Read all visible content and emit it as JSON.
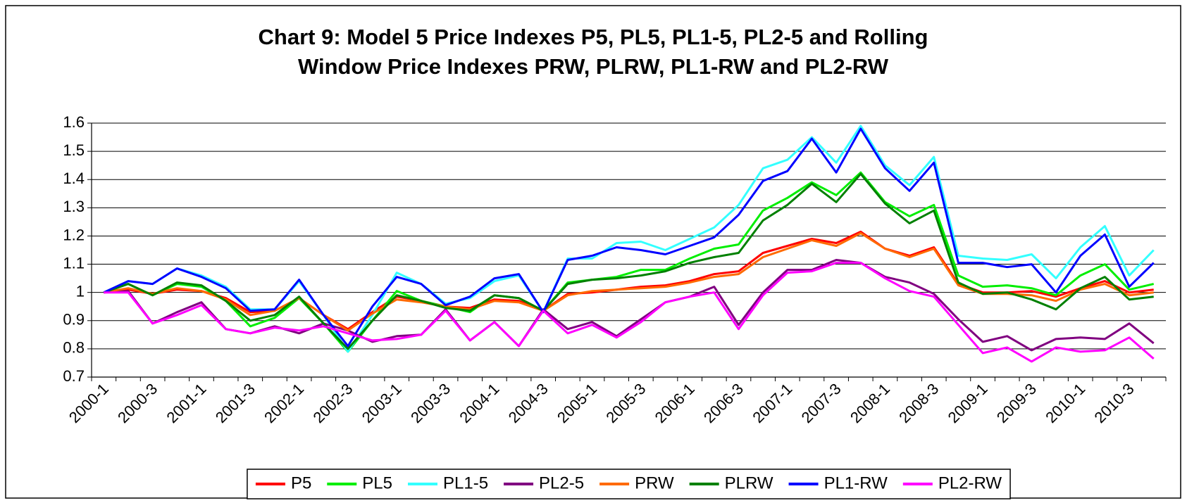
{
  "chart_data": {
    "type": "line",
    "title": [
      "Chart 9: Model 5 Price Indexes P5, PL5, PL1-5, PL2-5 and Rolling",
      "Window Price Indexes PRW, PLRW, PL1-RW and PL2-RW"
    ],
    "categories": [
      "2000-1",
      null,
      "2000-3",
      null,
      "2001-1",
      null,
      "2001-3",
      null,
      "2002-1",
      null,
      "2002-3",
      null,
      "2003-1",
      null,
      "2003-3",
      null,
      "2004-1",
      null,
      "2004-3",
      null,
      "2005-1",
      null,
      "2005-3",
      null,
      "2006-1",
      null,
      "2006-3",
      null,
      "2007-1",
      null,
      "2007-3",
      null,
      "2008-1",
      null,
      "2008-3",
      null,
      "2009-1",
      null,
      "2009-3",
      null,
      "2010-1",
      null,
      "2010-3",
      null
    ],
    "ylim": [
      0.7,
      1.6
    ],
    "yticks": [
      0.7,
      0.8,
      0.9,
      1,
      1.1,
      1.2,
      1.3,
      1.4,
      1.5,
      1.6
    ],
    "grid": true,
    "legend": "bottom",
    "series": [
      {
        "name": "P5",
        "color": "#ff0000",
        "values": [
          1.0,
          1.01,
          0.995,
          1.01,
          1.005,
          0.98,
          0.93,
          0.935,
          0.98,
          0.92,
          0.87,
          0.93,
          0.985,
          0.97,
          0.95,
          0.945,
          0.975,
          0.97,
          0.935,
          0.995,
          1.0,
          1.01,
          1.02,
          1.025,
          1.04,
          1.065,
          1.075,
          1.14,
          1.165,
          1.19,
          1.175,
          1.215,
          1.155,
          1.13,
          1.16,
          1.03,
          1.0,
          1.0,
          1.005,
          0.985,
          1.015,
          1.04,
          1.0,
          1.01
        ]
      },
      {
        "name": "PL5",
        "color": "#00ee00",
        "values": [
          1.0,
          1.03,
          0.99,
          1.03,
          1.02,
          0.97,
          0.88,
          0.91,
          0.98,
          0.89,
          0.79,
          0.9,
          1.005,
          0.97,
          0.95,
          0.93,
          0.99,
          0.98,
          0.935,
          1.035,
          1.045,
          1.055,
          1.08,
          1.08,
          1.12,
          1.155,
          1.17,
          1.29,
          1.335,
          1.39,
          1.345,
          1.425,
          1.32,
          1.27,
          1.31,
          1.06,
          1.02,
          1.025,
          1.015,
          0.99,
          1.06,
          1.1,
          1.01,
          1.03
        ]
      },
      {
        "name": "PL1-5",
        "color": "#33ffff",
        "values": [
          1.0,
          1.04,
          1.03,
          1.085,
          1.06,
          1.02,
          0.94,
          0.94,
          1.04,
          0.92,
          0.79,
          0.92,
          1.07,
          1.03,
          0.96,
          0.98,
          1.04,
          1.06,
          0.93,
          1.12,
          1.12,
          1.175,
          1.18,
          1.15,
          1.19,
          1.23,
          1.31,
          1.44,
          1.47,
          1.55,
          1.46,
          1.59,
          1.45,
          1.38,
          1.48,
          1.13,
          1.12,
          1.115,
          1.135,
          1.05,
          1.16,
          1.235,
          1.06,
          1.15
        ]
      },
      {
        "name": "PL2-5",
        "color": "#800080",
        "values": [
          1.0,
          1.005,
          0.89,
          0.93,
          0.965,
          0.87,
          0.855,
          0.88,
          0.855,
          0.89,
          0.865,
          0.825,
          0.845,
          0.85,
          0.94,
          0.83,
          0.895,
          0.81,
          0.94,
          0.87,
          0.895,
          0.845,
          0.905,
          0.965,
          0.985,
          1.02,
          0.885,
          1.0,
          1.08,
          1.08,
          1.115,
          1.105,
          1.055,
          1.035,
          0.995,
          0.905,
          0.825,
          0.845,
          0.795,
          0.835,
          0.84,
          0.835,
          0.89,
          0.82
        ]
      },
      {
        "name": "PRW",
        "color": "#ff6a00",
        "values": [
          1.0,
          1.015,
          0.995,
          1.015,
          1.005,
          0.975,
          0.92,
          0.935,
          0.98,
          0.92,
          0.865,
          0.925,
          0.975,
          0.965,
          0.95,
          0.94,
          0.97,
          0.965,
          0.935,
          0.99,
          1.005,
          1.01,
          1.015,
          1.02,
          1.035,
          1.055,
          1.065,
          1.125,
          1.155,
          1.185,
          1.165,
          1.21,
          1.155,
          1.125,
          1.155,
          1.025,
          0.995,
          0.995,
          0.99,
          0.97,
          1.01,
          1.03,
          0.99,
          1.0
        ]
      },
      {
        "name": "PLRW",
        "color": "#008000",
        "values": [
          1.0,
          1.03,
          0.99,
          1.035,
          1.025,
          0.97,
          0.9,
          0.92,
          0.985,
          0.89,
          0.8,
          0.9,
          0.99,
          0.97,
          0.945,
          0.935,
          0.99,
          0.98,
          0.935,
          1.03,
          1.045,
          1.05,
          1.06,
          1.075,
          1.105,
          1.125,
          1.14,
          1.255,
          1.31,
          1.385,
          1.32,
          1.42,
          1.315,
          1.245,
          1.29,
          1.035,
          0.995,
          1.0,
          0.975,
          0.94,
          1.015,
          1.055,
          0.975,
          0.985
        ]
      },
      {
        "name": "PL1-RW",
        "color": "#0000ff",
        "values": [
          1.0,
          1.04,
          1.03,
          1.085,
          1.055,
          1.015,
          0.935,
          0.94,
          1.045,
          0.92,
          0.81,
          0.95,
          1.055,
          1.03,
          0.955,
          0.985,
          1.05,
          1.065,
          0.93,
          1.115,
          1.13,
          1.16,
          1.15,
          1.135,
          1.165,
          1.195,
          1.275,
          1.395,
          1.43,
          1.545,
          1.425,
          1.58,
          1.44,
          1.36,
          1.46,
          1.105,
          1.105,
          1.09,
          1.1,
          1.0,
          1.13,
          1.205,
          1.02,
          1.105
        ]
      },
      {
        "name": "PL2-RW",
        "color": "#ff00ff",
        "values": [
          1.0,
          1.0,
          0.89,
          0.92,
          0.955,
          0.87,
          0.855,
          0.875,
          0.865,
          0.88,
          0.855,
          0.83,
          0.835,
          0.85,
          0.935,
          0.83,
          0.895,
          0.81,
          0.935,
          0.855,
          0.885,
          0.84,
          0.895,
          0.965,
          0.985,
          1.0,
          0.87,
          0.99,
          1.07,
          1.075,
          1.105,
          1.105,
          1.05,
          1.005,
          0.985,
          0.885,
          0.785,
          0.805,
          0.755,
          0.805,
          0.79,
          0.795,
          0.84,
          0.765
        ]
      }
    ]
  }
}
